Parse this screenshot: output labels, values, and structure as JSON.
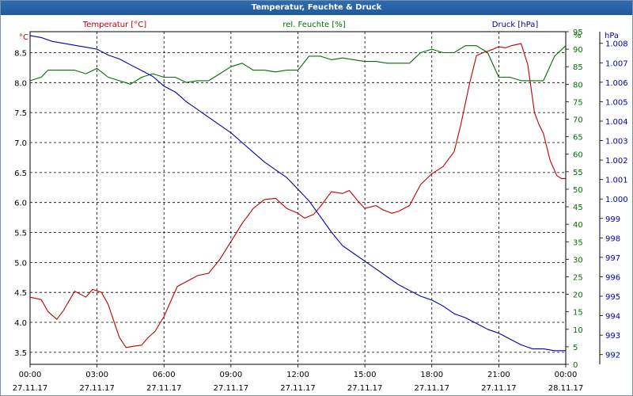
{
  "window_title": "Temperatur, Feuchte & Druck",
  "chart_data": {
    "type": "line",
    "title": "Temperatur, Feuchte & Druck",
    "x_ticks": [
      {
        "time": "00:00",
        "date": "27.11.17"
      },
      {
        "time": "03:00",
        "date": "27.11.17"
      },
      {
        "time": "06:00",
        "date": "27.11.17"
      },
      {
        "time": "09:00",
        "date": "27.11.17"
      },
      {
        "time": "12:00",
        "date": "27.11.17"
      },
      {
        "time": "15:00",
        "date": "27.11.17"
      },
      {
        "time": "18:00",
        "date": "27.11.17"
      },
      {
        "time": "21:00",
        "date": "27.11.17"
      },
      {
        "time": "00:00",
        "date": "28.11.17"
      }
    ],
    "xlim_hours": [
      0,
      24
    ],
    "grid": true,
    "axes": {
      "temperature": {
        "label": "Temperatur [°C]",
        "unit": "°C",
        "range": [
          3.3,
          8.85
        ],
        "ticks": [
          "3.5",
          "4.0",
          "4.5",
          "5.0",
          "5.5",
          "6.0",
          "6.5",
          "7.0",
          "7.5",
          "8.0",
          "8.5"
        ],
        "color": "#c00000"
      },
      "humidity": {
        "label": "rel. Feuchte [%]",
        "unit": "%",
        "range": [
          0,
          95
        ],
        "ticks": [
          "0",
          "5",
          "10",
          "15",
          "20",
          "25",
          "30",
          "35",
          "40",
          "45",
          "50",
          "55",
          "60",
          "65",
          "70",
          "75",
          "80",
          "85",
          "90",
          "95"
        ],
        "color": "#007000"
      },
      "pressure": {
        "label": "Druck [hPa]",
        "unit": "hPa",
        "range": [
          991.5,
          1008.6
        ],
        "ticks": [
          "992",
          "993",
          "994",
          "995",
          "996",
          "997",
          "998",
          "999",
          "1.000",
          "1.001",
          "1.002",
          "1.003",
          "1.004",
          "1.005",
          "1.006",
          "1.007",
          "1.008"
        ],
        "color": "#0000b0"
      }
    },
    "series": [
      {
        "name": "Temperatur [°C]",
        "axis": "temperature",
        "color": "#c00000",
        "x": [
          0,
          0.5,
          0.8,
          1.2,
          1.5,
          2,
          2.5,
          2.8,
          3.2,
          3.5,
          4,
          4.3,
          4.6,
          5,
          5.3,
          5.6,
          6,
          6.3,
          6.6,
          7,
          7.5,
          8,
          8.5,
          9,
          9.5,
          10,
          10.5,
          11,
          11.5,
          12,
          12.3,
          12.7,
          13,
          13.5,
          14,
          14.3,
          14.7,
          15,
          15.5,
          15.8,
          16.2,
          16.5,
          17,
          17.5,
          18,
          18.5,
          19,
          19.3,
          19.7,
          20,
          20.3,
          20.7,
          21,
          21.3,
          21.6,
          22,
          22.3,
          22.6,
          22.8,
          23,
          23.3,
          23.6,
          23.8,
          24
        ],
        "y": [
          4.42,
          4.38,
          4.18,
          4.05,
          4.2,
          4.52,
          4.42,
          4.55,
          4.5,
          4.3,
          3.75,
          3.58,
          3.6,
          3.62,
          3.75,
          3.85,
          4.1,
          4.35,
          4.6,
          4.68,
          4.78,
          4.82,
          5.05,
          5.35,
          5.65,
          5.9,
          6.05,
          6.07,
          5.9,
          5.82,
          5.74,
          5.8,
          5.93,
          6.18,
          6.15,
          6.2,
          6.02,
          5.9,
          5.95,
          5.88,
          5.82,
          5.85,
          5.95,
          6.3,
          6.48,
          6.6,
          6.85,
          7.3,
          8.0,
          8.45,
          8.5,
          8.55,
          8.6,
          8.58,
          8.62,
          8.65,
          8.3,
          7.5,
          7.3,
          7.15,
          6.7,
          6.45,
          6.4,
          6.4
        ]
      },
      {
        "name": "rel. Feuchte [%]",
        "axis": "humidity",
        "color": "#007000",
        "x": [
          0,
          0.5,
          0.8,
          1.5,
          2,
          2.5,
          3,
          3.5,
          4,
          4.5,
          5,
          5.5,
          6,
          6.5,
          7,
          7.5,
          8,
          8.5,
          9,
          9.5,
          10,
          10.5,
          11,
          11.5,
          12,
          12.5,
          13,
          13.5,
          14,
          14.5,
          15,
          15.5,
          16,
          16.5,
          17,
          17.5,
          18,
          18.5,
          19,
          19.5,
          20,
          20.5,
          21,
          21.5,
          22,
          22.5,
          23,
          23.5,
          24
        ],
        "y": [
          81,
          82,
          84,
          84,
          84,
          83,
          84.5,
          82,
          81,
          80,
          82,
          83,
          82,
          82,
          80.5,
          81,
          81,
          83,
          85,
          86,
          84,
          84,
          83.5,
          84,
          84,
          88,
          88,
          87,
          87.5,
          87,
          86.5,
          86.5,
          86,
          86,
          86,
          89,
          90,
          89,
          89,
          91,
          91,
          89,
          82,
          82,
          81,
          81,
          81,
          88,
          91
        ]
      },
      {
        "name": "Druck [hPa]",
        "axis": "pressure",
        "color": "#0000b0",
        "x": [
          0,
          0.5,
          1,
          1.5,
          2,
          2.5,
          3,
          3.5,
          4,
          4.5,
          5,
          5.5,
          6,
          6.5,
          7,
          7.5,
          8,
          8.5,
          9,
          9.5,
          10,
          10.5,
          11,
          11.5,
          12,
          12.5,
          13,
          13.5,
          14,
          14.5,
          15,
          15.5,
          16,
          16.5,
          17,
          17.5,
          18,
          18.5,
          19,
          19.5,
          20,
          20.5,
          21,
          21.5,
          22,
          22.5,
          23,
          23.5,
          24
        ],
        "y": [
          1008.4,
          1008.3,
          1008.1,
          1008.0,
          1007.9,
          1007.8,
          1007.7,
          1007.4,
          1007.2,
          1006.9,
          1006.6,
          1006.3,
          1005.8,
          1005.5,
          1005.0,
          1004.6,
          1004.2,
          1003.8,
          1003.4,
          1002.9,
          1002.4,
          1001.9,
          1001.5,
          1001.1,
          1000.5,
          999.9,
          999.1,
          998.3,
          997.6,
          997.2,
          996.8,
          996.4,
          996.0,
          995.6,
          995.3,
          995.0,
          994.8,
          994.5,
          994.1,
          993.9,
          993.6,
          993.3,
          993.1,
          992.8,
          992.5,
          992.3,
          992.3,
          992.2,
          992.2
        ]
      }
    ]
  }
}
